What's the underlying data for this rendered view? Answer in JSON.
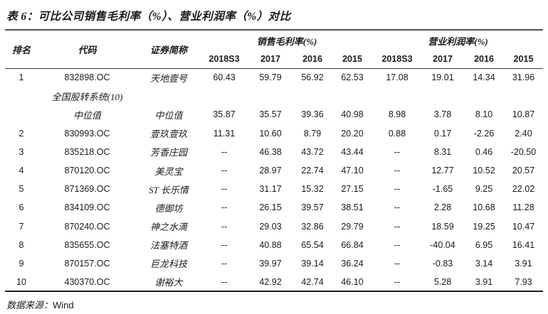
{
  "title": "表 6：可比公司销售毛利率（%）、营业利润率（%）对比",
  "colors": {
    "text": "#1a1a1a",
    "title_rule": "#515151",
    "header_rule": "#3a3a3a",
    "bottom_rule": "#1c1c1c",
    "background": "#ffffff"
  },
  "table": {
    "header": {
      "rank": "排名",
      "code": "代码",
      "name": "证券简称",
      "group_gross": "销售毛利率(%)",
      "group_operating": "营业利润率(%)",
      "years": [
        "2018S3",
        "2017",
        "2016",
        "2015",
        "2018S3",
        "2017",
        "2016",
        "2015"
      ]
    },
    "rows": [
      {
        "cells": [
          "1",
          "832898.OC",
          "天地壹号",
          "60.43",
          "59.79",
          "56.92",
          "62.53",
          "17.08",
          "19.01",
          "14.34",
          "31.96"
        ]
      },
      {
        "cells": [
          "",
          "全国股转系统(10)",
          "",
          "",
          "",
          "",
          "",
          "",
          "",
          "",
          ""
        ]
      },
      {
        "cells": [
          "",
          "中位值",
          "中位值",
          "35.87",
          "35.57",
          "39.36",
          "40.98",
          "8.98",
          "3.78",
          "8.10",
          "10.87"
        ]
      },
      {
        "cells": [
          "2",
          "830993.OC",
          "壹玖壹玖",
          "11.31",
          "10.60",
          "8.79",
          "20.20",
          "0.88",
          "0.17",
          "-2.26",
          "2.40"
        ]
      },
      {
        "cells": [
          "3",
          "835218.OC",
          "芳香庄园",
          "--",
          "46.38",
          "43.72",
          "43.44",
          "--",
          "8.31",
          "0.46",
          "-20.50"
        ]
      },
      {
        "cells": [
          "4",
          "870120.OC",
          "美灵宝",
          "--",
          "28.97",
          "22.74",
          "47.10",
          "--",
          "12.77",
          "10.52",
          "20.57"
        ]
      },
      {
        "cells": [
          "5",
          "871369.OC",
          "ST 长乐情",
          "--",
          "31.17",
          "15.32",
          "27.15",
          "--",
          "-1.65",
          "9.25",
          "22.02"
        ]
      },
      {
        "cells": [
          "6",
          "834109.OC",
          "德御坊",
          "--",
          "26.15",
          "39.57",
          "38.51",
          "--",
          "2.28",
          "10.68",
          "11.28"
        ]
      },
      {
        "cells": [
          "7",
          "870240.OC",
          "神之水滴",
          "--",
          "29.03",
          "32.86",
          "29.79",
          "--",
          "18.59",
          "19.25",
          "10.47"
        ]
      },
      {
        "cells": [
          "8",
          "835655.OC",
          "法塞特酒",
          "--",
          "40.88",
          "65.54",
          "66.84",
          "--",
          "-40.04",
          "6.95",
          "16.41"
        ]
      },
      {
        "cells": [
          "9",
          "870157.OC",
          "巨龙科技",
          "--",
          "39.97",
          "39.14",
          "36.24",
          "--",
          "-0.83",
          "3.14",
          "3.91"
        ]
      },
      {
        "cells": [
          "10",
          "430370.OC",
          "谢裕大",
          "--",
          "42.92",
          "42.74",
          "46.10",
          "--",
          "5.28",
          "3.91",
          "7.93"
        ]
      }
    ]
  },
  "footer": {
    "source_label": "数据来源：",
    "source_value": "Wind"
  }
}
